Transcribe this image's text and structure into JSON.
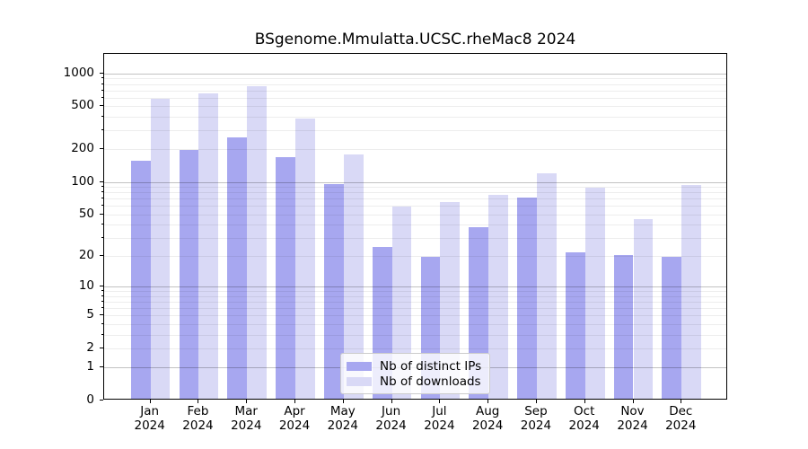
{
  "title": "BSgenome.Mmulatta.UCSC.rheMac8 2024",
  "chart_data": {
    "type": "bar",
    "title": "BSgenome.Mmulatta.UCSC.rheMac8 2024",
    "categories": [
      "Jan",
      "Feb",
      "Mar",
      "Apr",
      "May",
      "Jun",
      "Jul",
      "Aug",
      "Sep",
      "Oct",
      "Nov",
      "Dec"
    ],
    "category_year": "2024",
    "series": [
      {
        "name": "Nb of distinct IPs",
        "color": "#a7a7f0",
        "values": [
          152,
          193,
          253,
          166,
          92,
          24,
          19,
          37,
          70,
          21,
          20,
          19
        ]
      },
      {
        "name": "Nb of downloads",
        "color": "#d9d9f6",
        "values": [
          565,
          638,
          742,
          372,
          176,
          57,
          63,
          74,
          117,
          86,
          44,
          91
        ]
      }
    ],
    "y_axis": {
      "scale": "log1p",
      "tick_labels": [
        0,
        1,
        2,
        5,
        10,
        20,
        50,
        100,
        200,
        500,
        1000
      ],
      "major_gridlines": [
        1,
        10,
        100,
        1000
      ],
      "minor_gridlines": [
        2,
        3,
        4,
        5,
        6,
        7,
        8,
        9,
        20,
        30,
        40,
        50,
        60,
        70,
        80,
        90,
        200,
        300,
        400,
        500,
        600,
        700,
        800,
        900
      ],
      "range": [
        0,
        1000
      ]
    },
    "legend_position": "lower-center-inside",
    "grid": true,
    "background_color": "#ffffff",
    "axis_color": "#000000"
  }
}
